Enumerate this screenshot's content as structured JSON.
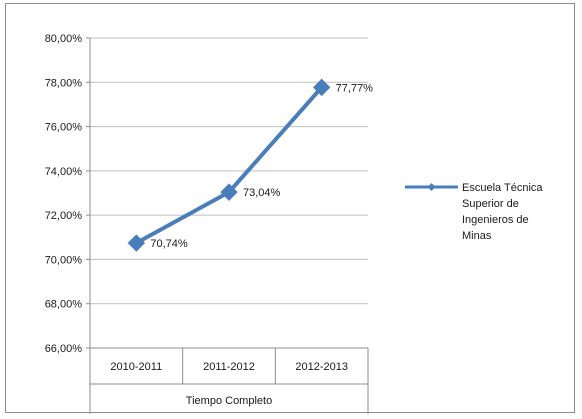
{
  "chart_data": {
    "type": "line",
    "categories": [
      "2010-2011",
      "2011-2012",
      "2012-2013"
    ],
    "category_group_label": "Tiempo Completo",
    "series": [
      {
        "name": "Escuela Técnica Superior de Ingenieros de Minas",
        "name_lines": [
          "Escuela Técnica",
          "Superior de",
          "Ingenieros de",
          "Minas"
        ],
        "values": [
          70.74,
          73.04,
          77.77
        ],
        "labels": [
          "70,74%",
          "73,04%",
          "77,77%"
        ],
        "color": "#4a7ebb",
        "marker": "diamond"
      }
    ],
    "y_ticks": [
      66,
      68,
      70,
      72,
      74,
      76,
      78,
      80
    ],
    "y_tick_labels": [
      "66,00%",
      "68,00%",
      "70,00%",
      "72,00%",
      "74,00%",
      "76,00%",
      "78,00%",
      "80,00%"
    ],
    "ylim": [
      66,
      80
    ],
    "grid": true,
    "legend_position": "right"
  }
}
